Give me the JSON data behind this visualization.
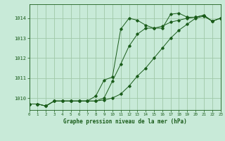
{
  "background_color": "#c8ead8",
  "grid_color": "#a0c8a8",
  "line_color": "#1a5c1a",
  "title": "Graphe pression niveau de la mer (hPa)",
  "xlim": [
    0,
    23
  ],
  "ylim": [
    1009.4,
    1014.7
  ],
  "yticks": [
    1010,
    1011,
    1012,
    1013,
    1014
  ],
  "xticks": [
    0,
    1,
    2,
    3,
    4,
    5,
    6,
    7,
    8,
    9,
    10,
    11,
    12,
    13,
    14,
    15,
    16,
    17,
    18,
    19,
    20,
    21,
    22,
    23
  ],
  "series": [
    [
      1009.7,
      1009.7,
      1009.6,
      1009.85,
      1009.85,
      1009.85,
      1009.85,
      1009.85,
      1010.1,
      1010.9,
      1011.05,
      1013.45,
      1014.0,
      1013.9,
      1013.65,
      1013.5,
      1013.5,
      1014.2,
      1014.25,
      1014.05,
      1014.05,
      1014.15,
      1013.85,
      1014.0
    ],
    [
      1009.7,
      1009.7,
      1009.6,
      1009.85,
      1009.85,
      1009.85,
      1009.85,
      1009.85,
      1009.85,
      1010.0,
      1010.85,
      1011.7,
      1012.6,
      1013.2,
      1013.5,
      1013.5,
      1013.6,
      1013.8,
      1013.9,
      1014.0,
      1014.05,
      1014.15,
      1013.85,
      1014.0
    ],
    [
      1009.7,
      1009.7,
      1009.6,
      1009.85,
      1009.85,
      1009.85,
      1009.85,
      1009.85,
      1009.85,
      1009.9,
      1010.0,
      1010.2,
      1010.6,
      1011.1,
      1011.5,
      1012.0,
      1012.5,
      1013.0,
      1013.4,
      1013.7,
      1014.0,
      1014.1,
      1013.85,
      1014.0
    ]
  ]
}
